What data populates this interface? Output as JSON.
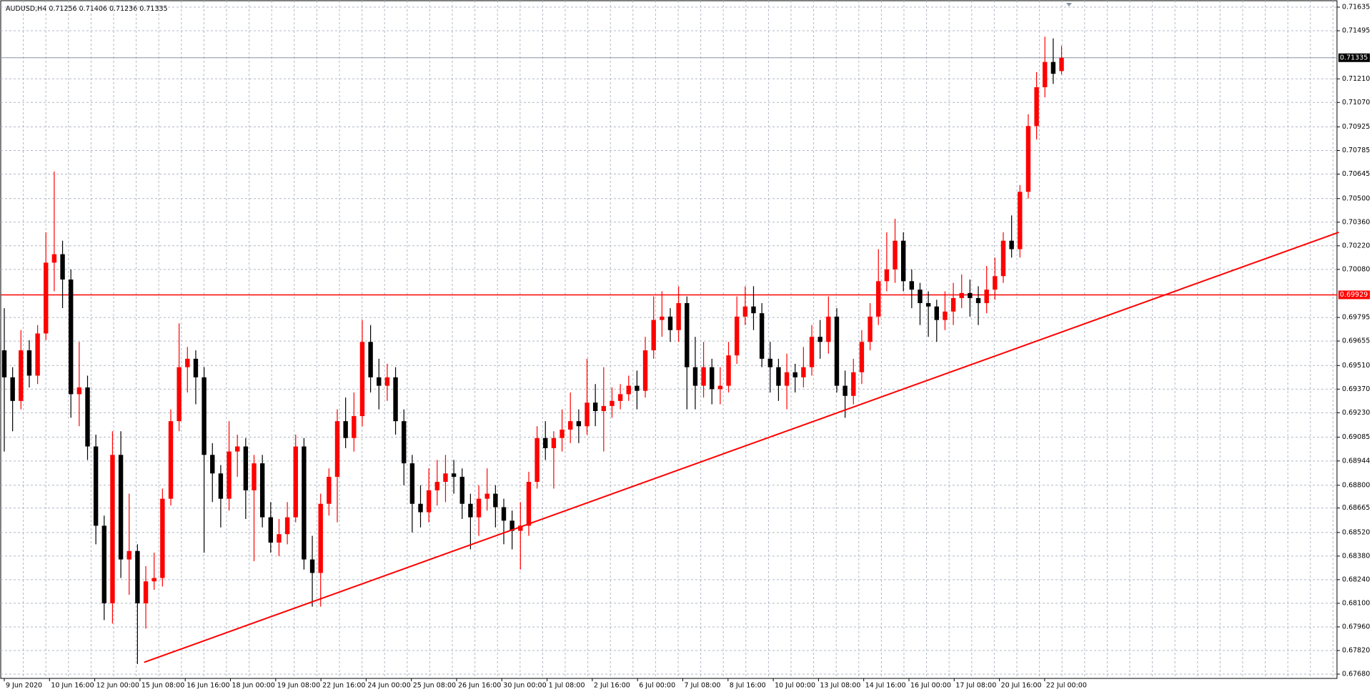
{
  "chart_data": {
    "type": "candlestick",
    "symbol": "AUDUSD,H4",
    "ylim": [
      0.6768,
      0.71635
    ],
    "yticks": [
      0.71635,
      0.71495,
      {
        "value": 0.7121,
        "label": "0.71210"
      },
      {
        "value": 0.7107,
        "label": "0.71070"
      },
      0.70925,
      0.70785,
      0.70645,
      {
        "value": 0.705,
        "label": "0.70500"
      },
      {
        "value": 0.7036,
        "label": "0.70360"
      },
      {
        "value": 0.7022,
        "label": "0.70220"
      },
      {
        "value": 0.7008,
        "label": "0.70080"
      },
      0.69795,
      0.69655,
      {
        "value": 0.6951,
        "label": "0.69510"
      },
      {
        "value": 0.6937,
        "label": "0.69370"
      },
      {
        "value": 0.6923,
        "label": "0.69230"
      },
      0.69085,
      0.68944,
      {
        "value": 0.688,
        "label": "0.68800"
      },
      0.68665,
      {
        "value": 0.6852,
        "label": "0.68520"
      },
      {
        "value": 0.6838,
        "label": "0.68380"
      },
      {
        "value": 0.6824,
        "label": "0.68240"
      },
      {
        "value": 0.681,
        "label": "0.68100"
      },
      {
        "value": 0.6796,
        "label": "0.67960"
      },
      {
        "value": 0.6782,
        "label": "0.67820"
      },
      {
        "value": 0.6768,
        "label": "0.67680"
      }
    ],
    "x_labels": [
      "9 Jun 2020",
      "10 Jun 16:00",
      "12 Jun 00:00",
      "15 Jun 08:00",
      "16 Jun 16:00",
      "18 Jun 00:00",
      "19 Jun 08:00",
      "22 Jun 16:00",
      "24 Jun 00:00",
      "25 Jun 08:00",
      "26 Jun 16:00",
      "30 Jun 00:00",
      "1 Jul 08:00",
      "2 Jul 16:00",
      "6 Jul 00:00",
      "7 Jul 08:00",
      "8 Jul 16:00",
      "10 Jul 00:00",
      "13 Jul 08:00",
      "14 Jul 16:00",
      "16 Jul 00:00",
      "17 Jul 08:00",
      "20 Jul 16:00",
      "22 Jul 00:00"
    ],
    "up_color": "#ff0000",
    "down_color": "#000000",
    "hline": {
      "value": 0.69929,
      "color": "#ff0000"
    },
    "trendline": {
      "start": [
        16.8,
        0.6775
      ],
      "end": [
        160.3,
        0.703
      ],
      "color": "#ff0000"
    },
    "candles": [
      [
        0.696,
        0.6985,
        0.69,
        0.6944
      ],
      [
        0.6944,
        0.695,
        0.6912,
        0.693
      ],
      [
        0.693,
        0.6972,
        0.6925,
        0.696
      ],
      [
        0.696,
        0.6966,
        0.6938,
        0.6945
      ],
      [
        0.6945,
        0.6975,
        0.694,
        0.697
      ],
      [
        0.697,
        0.703,
        0.6966,
        0.7012
      ],
      [
        0.7012,
        0.7066,
        0.6995,
        0.7017
      ],
      [
        0.7017,
        0.7025,
        0.6985,
        0.7002
      ],
      [
        0.7002,
        0.7008,
        0.692,
        0.6934
      ],
      [
        0.6934,
        0.6965,
        0.6915,
        0.6938
      ],
      [
        0.6938,
        0.6945,
        0.6895,
        0.6903
      ],
      [
        0.6903,
        0.691,
        0.6845,
        0.6856
      ],
      [
        0.6856,
        0.6862,
        0.68,
        0.681
      ],
      [
        0.681,
        0.6912,
        0.6798,
        0.6898
      ],
      [
        0.6898,
        0.6912,
        0.6825,
        0.6836
      ],
      [
        0.6836,
        0.6875,
        0.6815,
        0.6841
      ],
      [
        0.6841,
        0.6845,
        0.6774,
        0.681
      ],
      [
        0.681,
        0.6832,
        0.6795,
        0.6823
      ],
      [
        0.6823,
        0.684,
        0.6818,
        0.6825
      ],
      [
        0.6825,
        0.6878,
        0.682,
        0.6872
      ],
      [
        0.6872,
        0.6925,
        0.6868,
        0.6918
      ],
      [
        0.6918,
        0.6976,
        0.6912,
        0.695
      ],
      [
        0.695,
        0.6962,
        0.6935,
        0.6955
      ],
      [
        0.6955,
        0.696,
        0.6928,
        0.6944
      ],
      [
        0.6944,
        0.695,
        0.684,
        0.6898
      ],
      [
        0.6898,
        0.6905,
        0.687,
        0.6887
      ],
      [
        0.6887,
        0.6892,
        0.6855,
        0.6872
      ],
      [
        0.6872,
        0.6918,
        0.6865,
        0.69
      ],
      [
        0.69,
        0.691,
        0.6885,
        0.6903
      ],
      [
        0.6903,
        0.6908,
        0.686,
        0.6877
      ],
      [
        0.6877,
        0.6898,
        0.6835,
        0.6893
      ],
      [
        0.6893,
        0.6898,
        0.6855,
        0.6861
      ],
      [
        0.6861,
        0.687,
        0.684,
        0.6846
      ],
      [
        0.6846,
        0.686,
        0.6838,
        0.6851
      ],
      [
        0.6851,
        0.687,
        0.6845,
        0.6861
      ],
      [
        0.6861,
        0.691,
        0.6858,
        0.6903
      ],
      [
        0.6903,
        0.6908,
        0.683,
        0.6836
      ],
      [
        0.6836,
        0.685,
        0.6808,
        0.6828
      ],
      [
        0.6828,
        0.6875,
        0.6808,
        0.6869
      ],
      [
        0.6869,
        0.689,
        0.6862,
        0.6885
      ],
      [
        0.6885,
        0.6925,
        0.6858,
        0.6918
      ],
      [
        0.6918,
        0.6932,
        0.6902,
        0.6908
      ],
      [
        0.6908,
        0.6935,
        0.69,
        0.6921
      ],
      [
        0.6921,
        0.6978,
        0.6915,
        0.6965
      ],
      [
        0.6965,
        0.6975,
        0.6935,
        0.6944
      ],
      [
        0.6944,
        0.6955,
        0.6925,
        0.6939
      ],
      [
        0.6939,
        0.6952,
        0.693,
        0.6944
      ],
      [
        0.6944,
        0.695,
        0.691,
        0.6918
      ],
      [
        0.6918,
        0.6925,
        0.688,
        0.6893
      ],
      [
        0.6893,
        0.6898,
        0.6852,
        0.6869
      ],
      [
        0.6869,
        0.688,
        0.6855,
        0.6864
      ],
      [
        0.6864,
        0.689,
        0.6858,
        0.6877
      ],
      [
        0.6877,
        0.6895,
        0.6868,
        0.6882
      ],
      [
        0.6882,
        0.6898,
        0.687,
        0.6887
      ],
      [
        0.6887,
        0.6895,
        0.6875,
        0.6885
      ],
      [
        0.6885,
        0.689,
        0.686,
        0.6869
      ],
      [
        0.6869,
        0.6875,
        0.6842,
        0.6861
      ],
      [
        0.6861,
        0.688,
        0.685,
        0.6872
      ],
      [
        0.6872,
        0.689,
        0.6865,
        0.6875
      ],
      [
        0.6875,
        0.688,
        0.6855,
        0.6867
      ],
      [
        0.6867,
        0.6872,
        0.6845,
        0.6859
      ],
      [
        0.6859,
        0.6865,
        0.6842,
        0.6853
      ],
      [
        0.6853,
        0.687,
        0.683,
        0.6856
      ],
      [
        0.6856,
        0.6888,
        0.685,
        0.6882
      ],
      [
        0.6882,
        0.6915,
        0.6878,
        0.6908
      ],
      [
        0.6908,
        0.6918,
        0.6895,
        0.6902
      ],
      [
        0.6902,
        0.6912,
        0.6878,
        0.6908
      ],
      [
        0.6908,
        0.6925,
        0.69,
        0.6913
      ],
      [
        0.6913,
        0.6935,
        0.6905,
        0.6918
      ],
      [
        0.6918,
        0.6925,
        0.6905,
        0.6915
      ],
      [
        0.6915,
        0.6955,
        0.691,
        0.6929
      ],
      [
        0.6929,
        0.694,
        0.6915,
        0.6924
      ],
      [
        0.6924,
        0.695,
        0.69,
        0.6927
      ],
      [
        0.6927,
        0.6938,
        0.692,
        0.693
      ],
      [
        0.693,
        0.694,
        0.6925,
        0.6934
      ],
      [
        0.6934,
        0.6945,
        0.693,
        0.6939
      ],
      [
        0.6939,
        0.6948,
        0.6925,
        0.6936
      ],
      [
        0.6936,
        0.6968,
        0.6932,
        0.696
      ],
      [
        0.696,
        0.6992,
        0.6955,
        0.6978
      ],
      [
        0.6978,
        0.6995,
        0.6968,
        0.698
      ],
      [
        0.698,
        0.6985,
        0.6965,
        0.6972
      ],
      [
        0.6972,
        0.6998,
        0.6965,
        0.6988
      ],
      [
        0.6988,
        0.6992,
        0.6925,
        0.695
      ],
      [
        0.695,
        0.6968,
        0.6925,
        0.6939
      ],
      [
        0.6939,
        0.6965,
        0.6932,
        0.695
      ],
      [
        0.695,
        0.6955,
        0.6928,
        0.6937
      ],
      [
        0.6937,
        0.695,
        0.6928,
        0.6939
      ],
      [
        0.6939,
        0.6965,
        0.6935,
        0.6957
      ],
      [
        0.6957,
        0.6992,
        0.6952,
        0.698
      ],
      [
        0.698,
        0.6998,
        0.6975,
        0.6986
      ],
      [
        0.6986,
        0.6998,
        0.6972,
        0.6982
      ],
      [
        0.6982,
        0.6988,
        0.695,
        0.6955
      ],
      [
        0.6955,
        0.6965,
        0.6935,
        0.695
      ],
      [
        0.695,
        0.6955,
        0.693,
        0.6939
      ],
      [
        0.6939,
        0.6958,
        0.6925,
        0.6947
      ],
      [
        0.6947,
        0.6952,
        0.6935,
        0.6944
      ],
      [
        0.6944,
        0.6962,
        0.6938,
        0.695
      ],
      [
        0.695,
        0.6975,
        0.6945,
        0.6968
      ],
      [
        0.6968,
        0.6978,
        0.6955,
        0.6965
      ],
      [
        0.6965,
        0.6992,
        0.6958,
        0.698
      ],
      [
        0.698,
        0.6985,
        0.6935,
        0.6939
      ],
      [
        0.6939,
        0.6948,
        0.692,
        0.6933
      ],
      [
        0.6933,
        0.6955,
        0.6928,
        0.6947
      ],
      [
        0.6947,
        0.6972,
        0.694,
        0.6965
      ],
      [
        0.6965,
        0.6988,
        0.696,
        0.698
      ],
      [
        0.698,
        0.702,
        0.6975,
        0.7001
      ],
      [
        0.7001,
        0.703,
        0.6995,
        0.7008
      ],
      [
        0.7008,
        0.7038,
        0.7,
        0.7025
      ],
      [
        0.7025,
        0.703,
        0.6995,
        0.7001
      ],
      [
        0.7001,
        0.7008,
        0.6985,
        0.6996
      ],
      [
        0.6996,
        0.7,
        0.6975,
        0.6988
      ],
      [
        0.6988,
        0.6995,
        0.6968,
        0.6986
      ],
      [
        0.6986,
        0.699,
        0.6965,
        0.6978
      ],
      [
        0.6978,
        0.6995,
        0.6972,
        0.6983
      ],
      [
        0.6983,
        0.7,
        0.6975,
        0.6991
      ],
      [
        0.6991,
        0.7005,
        0.6985,
        0.6994
      ],
      [
        0.6994,
        0.7002,
        0.698,
        0.6991
      ],
      [
        0.6991,
        0.6998,
        0.6975,
        0.6988
      ],
      [
        0.6988,
        0.701,
        0.6982,
        0.6996
      ],
      [
        0.6996,
        0.7015,
        0.699,
        0.7004
      ],
      [
        0.7004,
        0.703,
        0.7,
        0.7025
      ],
      [
        0.7025,
        0.704,
        0.7015,
        0.702
      ],
      [
        0.702,
        0.7058,
        0.7015,
        0.7054
      ],
      [
        0.7054,
        0.71,
        0.705,
        0.7093
      ],
      [
        0.7093,
        0.7125,
        0.7085,
        0.7116
      ],
      [
        0.7116,
        0.7146,
        0.711,
        0.7131
      ],
      [
        0.7131,
        0.7145,
        0.7118,
        0.7124
      ],
      [
        0.71256,
        0.71406,
        0.71236,
        0.71335
      ]
    ]
  }
}
